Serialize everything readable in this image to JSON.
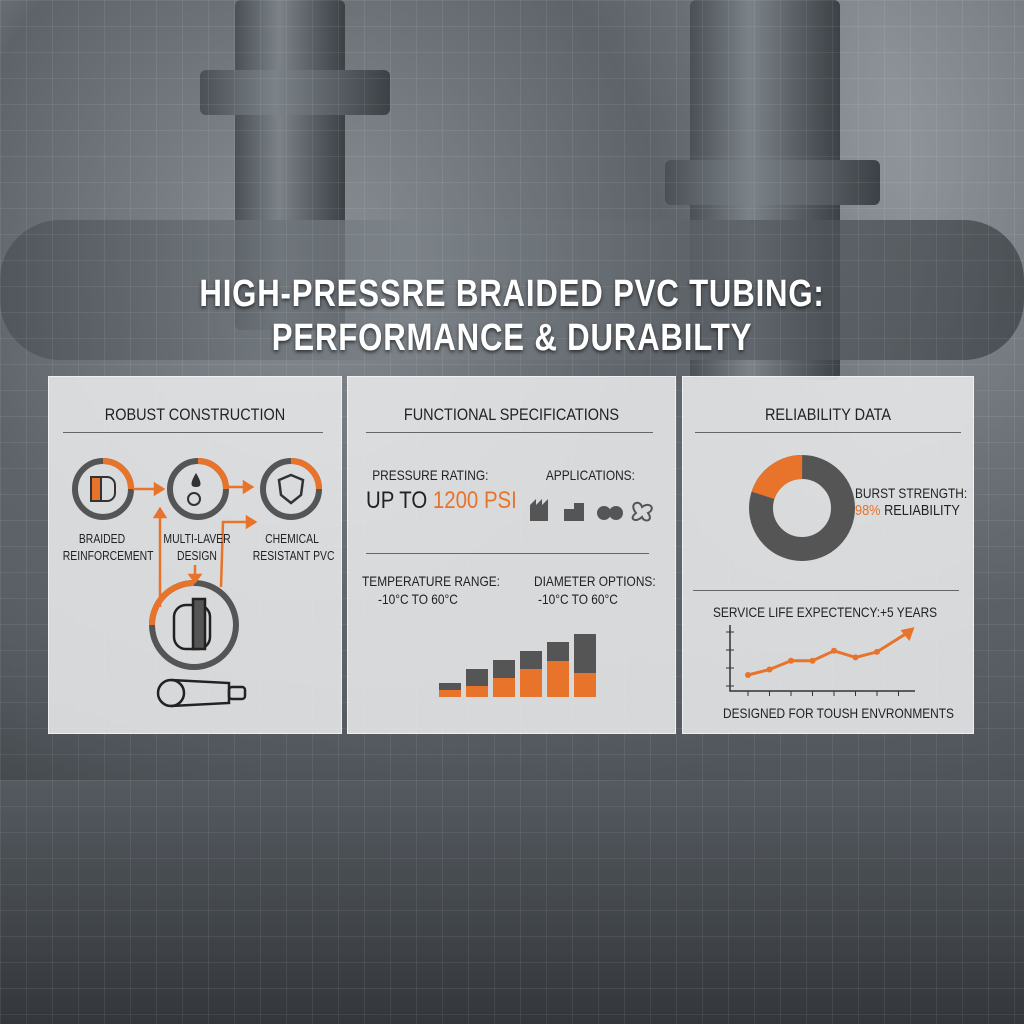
{
  "title": {
    "line1": "HIGH-PRESSRE BRAIDED PVC TUBING:",
    "line2": "PERFORMANCE & DURABILTY"
  },
  "colors": {
    "accent": "#e8732a",
    "dark": "#555555",
    "panel": "#e8e9ea"
  },
  "construction": {
    "heading": "ROBUST CONSTRUCTION",
    "items": [
      {
        "label1": "BRAIDED",
        "label2": "REINFORCEMENT",
        "icon": "braided-tube-icon"
      },
      {
        "label1": "MULTI-LAVER",
        "label2": "DESIGN",
        "icon": "droplet-icon"
      },
      {
        "label1": "CHEMICAL",
        "label2": "RESISTANT PVC",
        "icon": "shield-icon"
      }
    ]
  },
  "specs": {
    "heading": "FUNCTIONAL SPECIFICATIONS",
    "pressure_label": "PRESSURE RATING:",
    "pressure_prefix": "UP TO ",
    "pressure_value": "1200 PSI",
    "applications_label": "APPLICATIONS:",
    "applications_icons": [
      "factory-icon",
      "factory-icon",
      "gears-icon",
      "fan-icon"
    ],
    "temperature_label": "TEMPERATURE RANGE:",
    "temperature_value": "-10°C TO 60°C",
    "diameter_label": "DIAMETER OPTIONS:",
    "diameter_value": "-10°C TO 60°C"
  },
  "reliability": {
    "heading": "RELIABILITY DATA",
    "burst_label": "BURST STRENGTH:",
    "burst_value": "98%",
    "burst_suffix": " RELIABILITY",
    "service_label": "SERVICE LIFE EXPECTENCY:+5 YEARS",
    "footer": "DESIGNED FOR TOUSH ENVRONMENTS"
  },
  "chart_data": [
    {
      "type": "bar",
      "stacked": true,
      "series": [
        {
          "values": [
            7,
            11,
            19,
            28,
            36,
            24
          ]
        },
        {
          "values": [
            7,
            17,
            18,
            18,
            19,
            39
          ]
        }
      ]
    },
    {
      "type": "pie",
      "donut": true,
      "values": [
        20,
        80
      ]
    },
    {
      "type": "line",
      "values": [
        1,
        1.5,
        2.3,
        2.3,
        3.2,
        2.6,
        3.1,
        4.9
      ]
    }
  ]
}
